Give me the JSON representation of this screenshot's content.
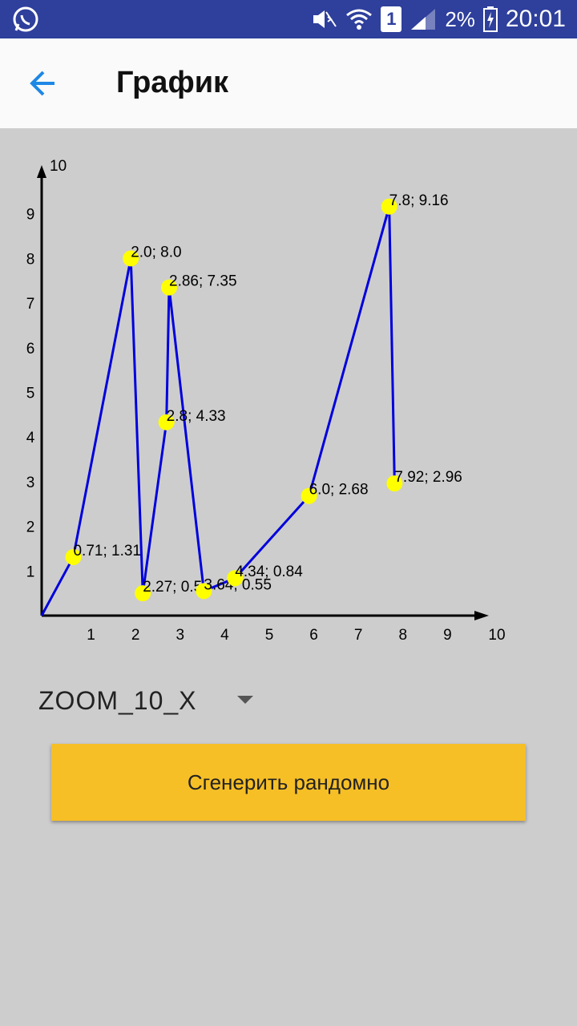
{
  "status_bar": {
    "battery": "2%",
    "time": "20:01",
    "sim": "1",
    "icons": [
      "whatsapp-icon",
      "mute-icon",
      "wifi-icon",
      "sim-icon",
      "signal-icon",
      "battery-charging-icon"
    ]
  },
  "app_bar": {
    "title": "График",
    "back_icon": "arrow-back-icon"
  },
  "chart_data": {
    "type": "line",
    "x_ticks": [
      "1",
      "2",
      "3",
      "4",
      "5",
      "6",
      "7",
      "8",
      "9",
      "10"
    ],
    "y_ticks": [
      "1",
      "2",
      "3",
      "4",
      "5",
      "6",
      "7",
      "8",
      "9",
      "10"
    ],
    "xlim": [
      0,
      10
    ],
    "ylim": [
      0,
      10
    ],
    "grid": false,
    "line_color": "#0000dd",
    "point_color": "#ffff00",
    "points": [
      {
        "x": 0.71,
        "y": 1.31,
        "label": "0.71; 1.31"
      },
      {
        "x": 2.0,
        "y": 8.0,
        "label": "2.0; 8.0"
      },
      {
        "x": 2.27,
        "y": 0.5,
        "label": "2.27; 0.5"
      },
      {
        "x": 2.8,
        "y": 4.33,
        "label": "2.8; 4.33"
      },
      {
        "x": 2.86,
        "y": 7.35,
        "label": "2.86; 7.35"
      },
      {
        "x": 3.64,
        "y": 0.55,
        "label": "3.64; 0.55"
      },
      {
        "x": 4.34,
        "y": 0.84,
        "label": "4.34; 0.84"
      },
      {
        "x": 6.0,
        "y": 2.68,
        "label": "6.0; 2.68"
      },
      {
        "x": 7.8,
        "y": 9.16,
        "label": "7.8; 9.16"
      },
      {
        "x": 7.92,
        "y": 2.96,
        "label": "7.92; 2.96"
      }
    ],
    "line_order": [
      {
        "x": 0,
        "y": 0
      },
      {
        "x": 0.71,
        "y": 1.31
      },
      {
        "x": 2.0,
        "y": 8.0
      },
      {
        "x": 2.27,
        "y": 0.5
      },
      {
        "x": 2.8,
        "y": 4.33
      },
      {
        "x": 2.86,
        "y": 7.35
      },
      {
        "x": 3.64,
        "y": 0.55
      },
      {
        "x": 4.34,
        "y": 0.84
      },
      {
        "x": 6.0,
        "y": 2.68
      },
      {
        "x": 7.8,
        "y": 9.16
      },
      {
        "x": 7.92,
        "y": 2.96
      }
    ]
  },
  "zoom_select": {
    "value": "ZOOM_10_X"
  },
  "generate_button": {
    "label": "Сгенерить рандомно"
  },
  "colors": {
    "status_bar": "#2e3f9c",
    "app_bar": "#fafafa",
    "background": "#cdcdcd",
    "accent": "#1e88e5",
    "button": "#f6bf26"
  }
}
